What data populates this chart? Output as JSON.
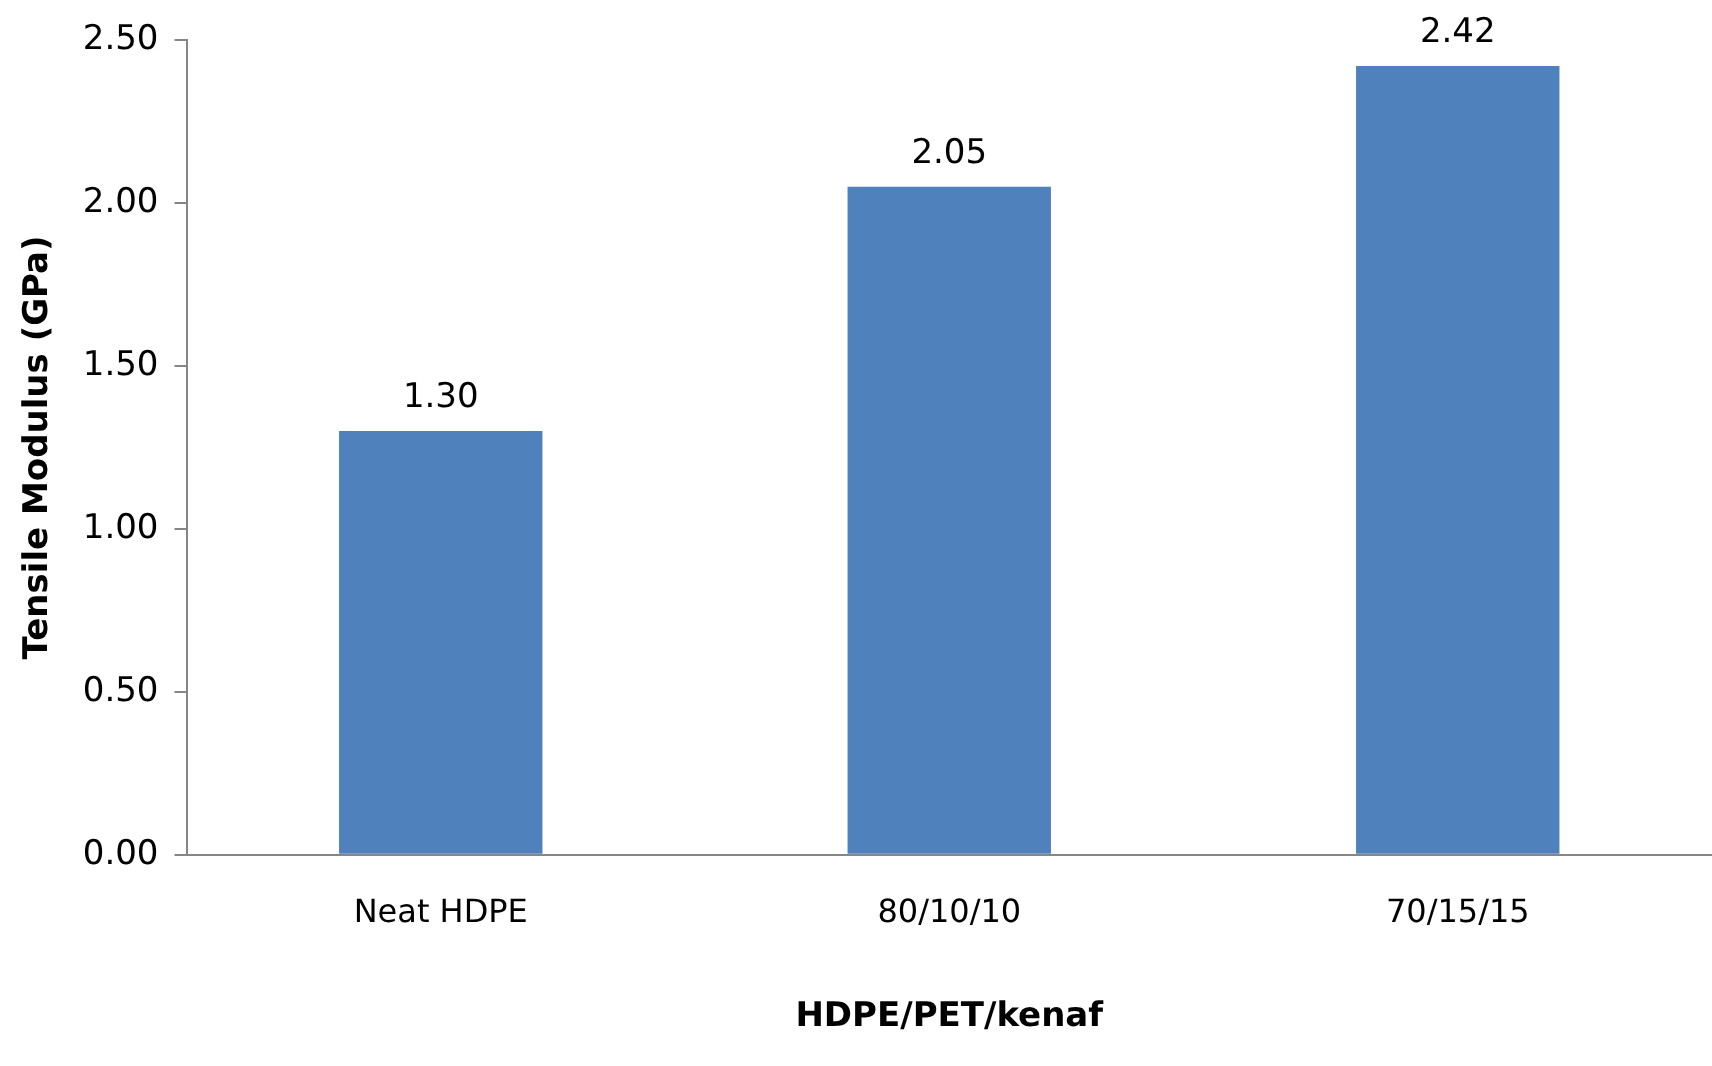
{
  "chart_data": {
    "type": "bar",
    "xlabel": "HDPE/PET/kenaf",
    "ylabel": "Tensile Modulus (GPa)",
    "categories": [
      "Neat HDPE",
      "80/10/10",
      "70/15/15"
    ],
    "values": [
      1.3,
      2.05,
      2.42
    ],
    "color": "#4f81bd",
    "value_labels": [
      "1.30",
      "2.05",
      "2.42"
    ],
    "ylim": [
      0,
      2.5
    ],
    "yticks": [
      {
        "value": 0,
        "label": "0.00"
      },
      {
        "value": 0.5,
        "label": "0.50"
      },
      {
        "value": 1,
        "label": "1.00"
      },
      {
        "value": 1.5,
        "label": "1.50"
      },
      {
        "value": 2,
        "label": "2.00"
      },
      {
        "value": 2.5,
        "label": "2.50"
      }
    ],
    "grid": false,
    "legend": false
  }
}
